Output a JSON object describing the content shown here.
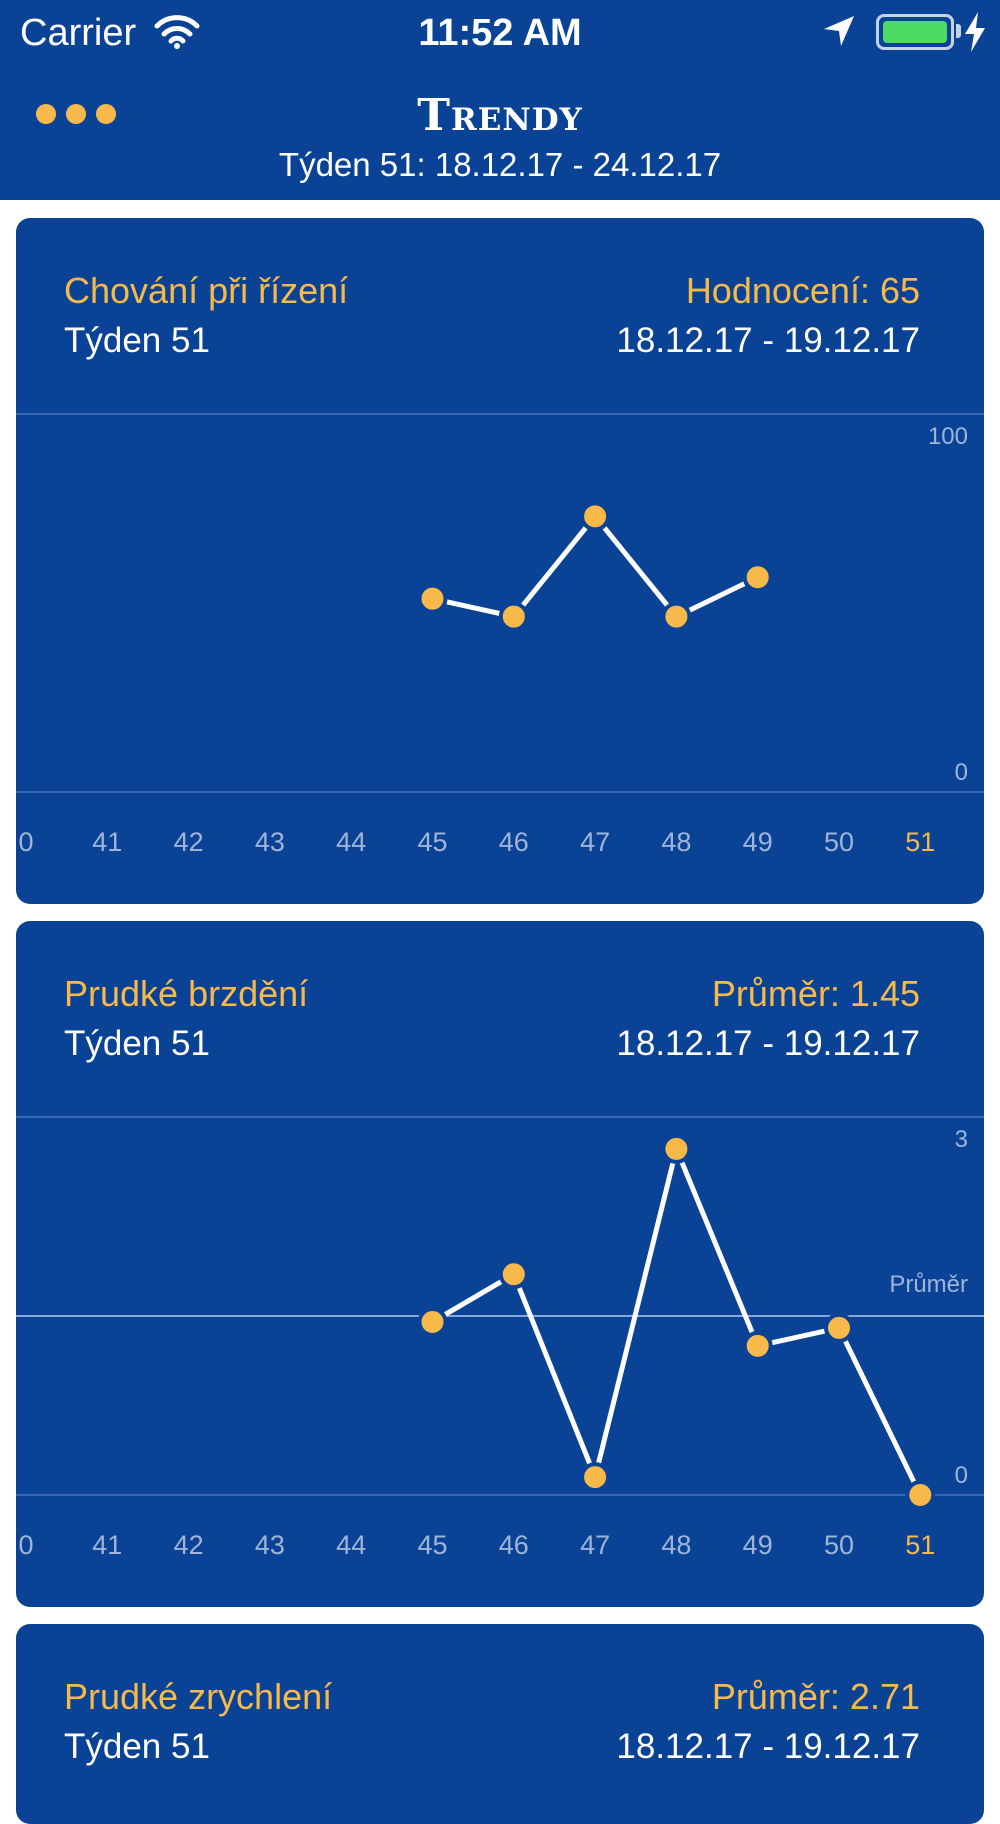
{
  "status_bar": {
    "carrier": "Carrier",
    "time": "11:52 AM",
    "battery_color": "#4cd964"
  },
  "header": {
    "menu_icon": "more-dots-icon",
    "title": "Trendy",
    "subtitle": "Týden 51: 18.12.17 - 24.12.17"
  },
  "colors": {
    "background": "#0a4396",
    "accent": "#f6b94a",
    "muted_text": "#9fb4d9",
    "line": "#ffffff"
  },
  "cards": [
    {
      "title": "Chování při řízení",
      "score": "Hodnocení: 65",
      "week": "Týden 51",
      "range": "18.12.17 - 19.12.17",
      "y_max_label": "100",
      "y_min_label": "0",
      "x_labels": [
        "0",
        "41",
        "42",
        "43",
        "44",
        "45",
        "46",
        "47",
        "48",
        "49",
        "50",
        "51"
      ],
      "active_x_label": "51"
    },
    {
      "title": "Prudké brzdění",
      "score": "Průměr: 1.45",
      "week": "Týden 51",
      "range": "18.12.17 - 19.12.17",
      "y_max_label": "3",
      "y_min_label": "0",
      "avg_label": "Průměr",
      "x_labels": [
        "0",
        "41",
        "42",
        "43",
        "44",
        "45",
        "46",
        "47",
        "48",
        "49",
        "50",
        "51"
      ],
      "active_x_label": "51"
    },
    {
      "title": "Prudké zrychlení",
      "score": "Průměr: 2.71",
      "week": "Týden 51",
      "range": "18.12.17 - 19.12.17"
    }
  ],
  "chart_data": [
    {
      "type": "line",
      "x": [
        45,
        46,
        47,
        48,
        49
      ],
      "y": [
        54,
        49,
        77,
        49,
        60
      ],
      "ylim": [
        0,
        100
      ],
      "xlim": [
        40,
        51
      ],
      "title": "Chování při řízení"
    },
    {
      "type": "line",
      "x": [
        45,
        46,
        47,
        48,
        49,
        50,
        51
      ],
      "y": [
        1.45,
        1.85,
        0.15,
        2.9,
        1.25,
        1.4,
        0.0
      ],
      "ylim": [
        0,
        3
      ],
      "xlim": [
        40,
        51
      ],
      "average": 1.5,
      "title": "Prudké brzdění"
    }
  ]
}
